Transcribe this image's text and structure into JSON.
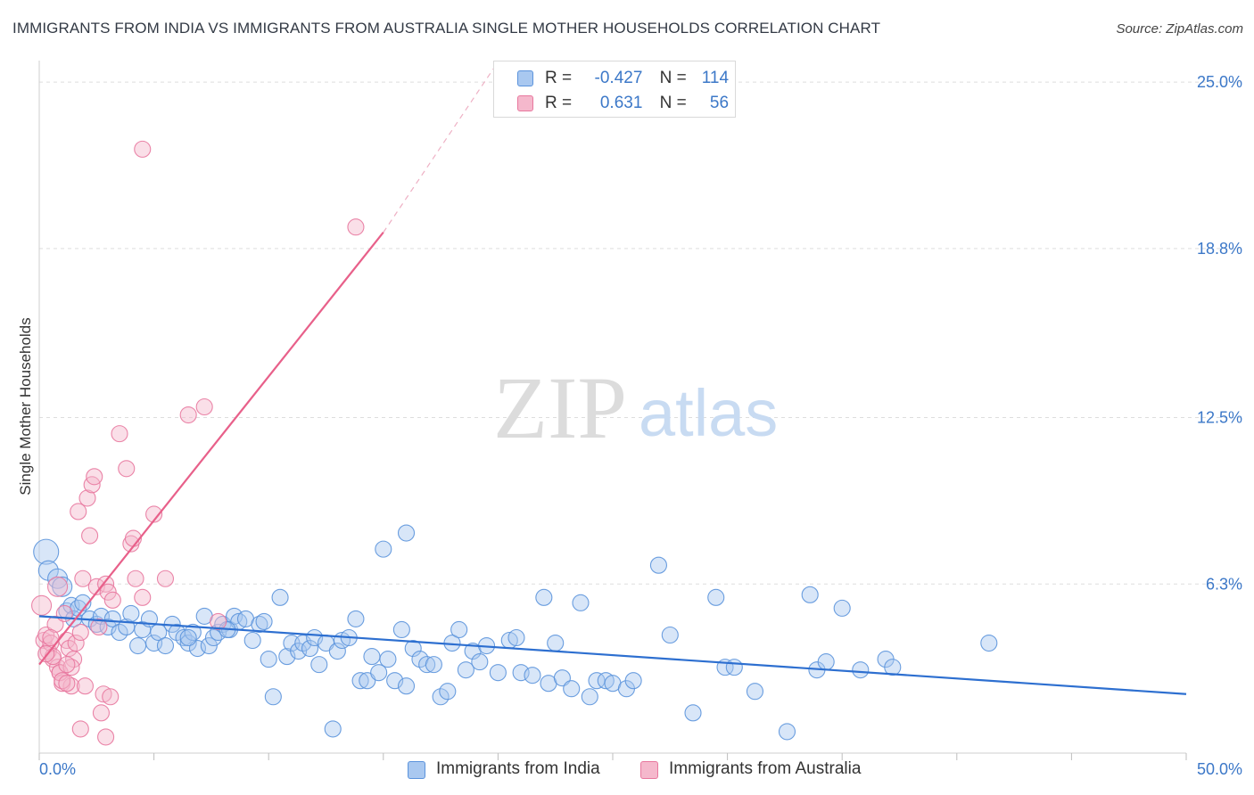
{
  "title": "IMMIGRANTS FROM INDIA VS IMMIGRANTS FROM AUSTRALIA SINGLE MOTHER HOUSEHOLDS CORRELATION CHART",
  "source": "Source: ZipAtlas.com",
  "watermark": {
    "zip": "ZIP",
    "atlas": "atlas"
  },
  "legend": {
    "india": {
      "r_label": "R =",
      "r_value": "-0.427",
      "n_label": "N =",
      "n_value": "114"
    },
    "australia": {
      "r_label": "R =",
      "r_value": "0.631",
      "n_label": "N =",
      "n_value": "56"
    }
  },
  "colors": {
    "india_fill": "#a9c8f0",
    "india_stroke": "#5b93dc",
    "india_line": "#2d6fd0",
    "australia_fill": "#f5b8cc",
    "australia_stroke": "#e8789e",
    "australia_line": "#e8608a",
    "grid": "#dddddd",
    "axis_text": "#3c78c8"
  },
  "chart_data": {
    "type": "scatter",
    "title": "IMMIGRANTS FROM INDIA VS IMMIGRANTS FROM AUSTRALIA SINGLE MOTHER HOUSEHOLDS CORRELATION CHART",
    "xlabel": "",
    "ylabel": "Single Mother Households",
    "xlim": [
      0,
      50
    ],
    "ylim": [
      0,
      25.8
    ],
    "x_tick_labels": [
      "0.0%",
      "50.0%"
    ],
    "y_ticks": [
      6.3,
      12.5,
      18.8,
      25.0
    ],
    "y_tick_labels": [
      "6.3%",
      "12.5%",
      "18.8%",
      "25.0%"
    ],
    "series": [
      {
        "name": "Immigrants from India",
        "r": -0.427,
        "n": 114,
        "trend": {
          "x": [
            0,
            50
          ],
          "y": [
            5.1,
            2.2
          ]
        },
        "points": [
          [
            0.3,
            7.5
          ],
          [
            0.4,
            6.8
          ],
          [
            0.8,
            6.5
          ],
          [
            1.0,
            6.2
          ],
          [
            1.2,
            5.3
          ],
          [
            1.4,
            5.5
          ],
          [
            1.5,
            5.0
          ],
          [
            1.7,
            5.4
          ],
          [
            1.9,
            5.6
          ],
          [
            2.2,
            5.0
          ],
          [
            2.5,
            4.8
          ],
          [
            2.7,
            5.1
          ],
          [
            3.0,
            4.7
          ],
          [
            3.2,
            5.0
          ],
          [
            3.5,
            4.5
          ],
          [
            3.8,
            4.7
          ],
          [
            4.0,
            5.2
          ],
          [
            4.3,
            4.0
          ],
          [
            4.5,
            4.6
          ],
          [
            4.8,
            5.0
          ],
          [
            5.0,
            4.1
          ],
          [
            5.2,
            4.5
          ],
          [
            5.5,
            4.0
          ],
          [
            5.8,
            4.8
          ],
          [
            6.0,
            4.5
          ],
          [
            6.3,
            4.3
          ],
          [
            6.5,
            4.1
          ],
          [
            6.7,
            4.5
          ],
          [
            6.9,
            3.9
          ],
          [
            7.2,
            5.1
          ],
          [
            7.4,
            4.0
          ],
          [
            7.6,
            4.3
          ],
          [
            7.8,
            4.5
          ],
          [
            8.0,
            4.8
          ],
          [
            8.3,
            4.6
          ],
          [
            8.5,
            5.1
          ],
          [
            8.7,
            4.9
          ],
          [
            9.0,
            5.0
          ],
          [
            9.3,
            4.2
          ],
          [
            9.6,
            4.8
          ],
          [
            9.8,
            4.9
          ],
          [
            10.0,
            3.5
          ],
          [
            10.2,
            2.1
          ],
          [
            10.5,
            5.8
          ],
          [
            10.8,
            3.6
          ],
          [
            11.0,
            4.1
          ],
          [
            11.3,
            3.8
          ],
          [
            11.5,
            4.1
          ],
          [
            11.8,
            3.9
          ],
          [
            12.0,
            4.3
          ],
          [
            12.2,
            3.3
          ],
          [
            12.5,
            4.1
          ],
          [
            12.8,
            0.9
          ],
          [
            13.0,
            3.8
          ],
          [
            13.2,
            4.2
          ],
          [
            13.5,
            4.3
          ],
          [
            13.8,
            5.0
          ],
          [
            14.0,
            2.7
          ],
          [
            14.3,
            2.7
          ],
          [
            14.5,
            3.6
          ],
          [
            14.8,
            3.0
          ],
          [
            15.0,
            7.6
          ],
          [
            15.2,
            3.5
          ],
          [
            15.5,
            2.7
          ],
          [
            15.8,
            4.6
          ],
          [
            16.0,
            2.5
          ],
          [
            16.3,
            3.9
          ],
          [
            16.6,
            3.5
          ],
          [
            16.9,
            3.3
          ],
          [
            17.2,
            3.3
          ],
          [
            17.5,
            2.1
          ],
          [
            17.8,
            2.3
          ],
          [
            18.0,
            4.1
          ],
          [
            18.3,
            4.6
          ],
          [
            18.6,
            3.1
          ],
          [
            18.9,
            3.8
          ],
          [
            19.2,
            3.4
          ],
          [
            19.5,
            4.0
          ],
          [
            20.0,
            3.0
          ],
          [
            20.5,
            4.2
          ],
          [
            20.8,
            4.3
          ],
          [
            21.0,
            3.0
          ],
          [
            21.5,
            2.9
          ],
          [
            22.0,
            5.8
          ],
          [
            22.2,
            2.6
          ],
          [
            22.5,
            4.1
          ],
          [
            22.8,
            2.8
          ],
          [
            23.2,
            2.4
          ],
          [
            23.6,
            5.6
          ],
          [
            24.0,
            2.1
          ],
          [
            24.3,
            2.7
          ],
          [
            24.7,
            2.7
          ],
          [
            25.0,
            2.6
          ],
          [
            25.6,
            2.4
          ],
          [
            25.9,
            2.7
          ],
          [
            27.0,
            7.0
          ],
          [
            27.5,
            4.4
          ],
          [
            28.5,
            1.5
          ],
          [
            29.5,
            5.8
          ],
          [
            29.9,
            3.2
          ],
          [
            30.3,
            3.2
          ],
          [
            31.2,
            2.3
          ],
          [
            32.6,
            0.8
          ],
          [
            33.6,
            5.9
          ],
          [
            33.9,
            3.1
          ],
          [
            34.3,
            3.4
          ],
          [
            35.0,
            5.4
          ],
          [
            35.8,
            3.1
          ],
          [
            36.9,
            3.5
          ],
          [
            37.2,
            3.2
          ],
          [
            41.4,
            4.1
          ],
          [
            6.5,
            4.3
          ],
          [
            8.2,
            4.6
          ],
          [
            16.0,
            8.2
          ]
        ]
      },
      {
        "name": "Immigrants from Australia",
        "r": 0.631,
        "n": 56,
        "trend": {
          "x": [
            0,
            15
          ],
          "y": [
            3.3,
            19.4
          ]
        },
        "trend_dashed": {
          "x": [
            15,
            19.8
          ],
          "y": [
            19.4,
            25.5
          ]
        },
        "points": [
          [
            0.1,
            5.5
          ],
          [
            0.2,
            4.2
          ],
          [
            0.3,
            4.4
          ],
          [
            0.4,
            3.8
          ],
          [
            0.5,
            4.1
          ],
          [
            0.6,
            3.5
          ],
          [
            0.7,
            4.8
          ],
          [
            0.8,
            3.2
          ],
          [
            0.9,
            3.0
          ],
          [
            1.0,
            2.6
          ],
          [
            1.1,
            5.2
          ],
          [
            1.2,
            4.2
          ],
          [
            1.3,
            3.9
          ],
          [
            1.4,
            2.5
          ],
          [
            1.5,
            3.5
          ],
          [
            1.6,
            4.1
          ],
          [
            1.7,
            9.0
          ],
          [
            1.8,
            4.5
          ],
          [
            1.9,
            6.5
          ],
          [
            2.0,
            2.5
          ],
          [
            2.1,
            9.5
          ],
          [
            2.2,
            8.1
          ],
          [
            2.3,
            10.0
          ],
          [
            2.4,
            10.3
          ],
          [
            2.5,
            6.2
          ],
          [
            2.6,
            4.7
          ],
          [
            2.7,
            1.5
          ],
          [
            2.8,
            2.2
          ],
          [
            2.9,
            6.3
          ],
          [
            3.0,
            6.0
          ],
          [
            3.2,
            5.7
          ],
          [
            3.5,
            11.9
          ],
          [
            3.8,
            10.6
          ],
          [
            4.0,
            7.8
          ],
          [
            4.2,
            6.5
          ],
          [
            4.5,
            5.8
          ],
          [
            5.0,
            8.9
          ],
          [
            5.5,
            6.5
          ],
          [
            6.5,
            12.6
          ],
          [
            7.2,
            12.9
          ],
          [
            7.8,
            4.9
          ],
          [
            4.5,
            22.5
          ],
          [
            13.8,
            19.6
          ],
          [
            0.5,
            4.3
          ],
          [
            0.6,
            3.6
          ],
          [
            0.9,
            3.0
          ],
          [
            1.0,
            2.7
          ],
          [
            1.2,
            2.6
          ],
          [
            1.4,
            3.2
          ],
          [
            1.8,
            0.9
          ],
          [
            2.9,
            0.6
          ],
          [
            3.1,
            2.1
          ],
          [
            4.1,
            8.0
          ],
          [
            0.3,
            3.7
          ],
          [
            1.2,
            3.3
          ],
          [
            0.8,
            6.2
          ]
        ]
      }
    ]
  },
  "bottom_legend": {
    "india": "Immigrants from India",
    "australia": "Immigrants from Australia"
  }
}
